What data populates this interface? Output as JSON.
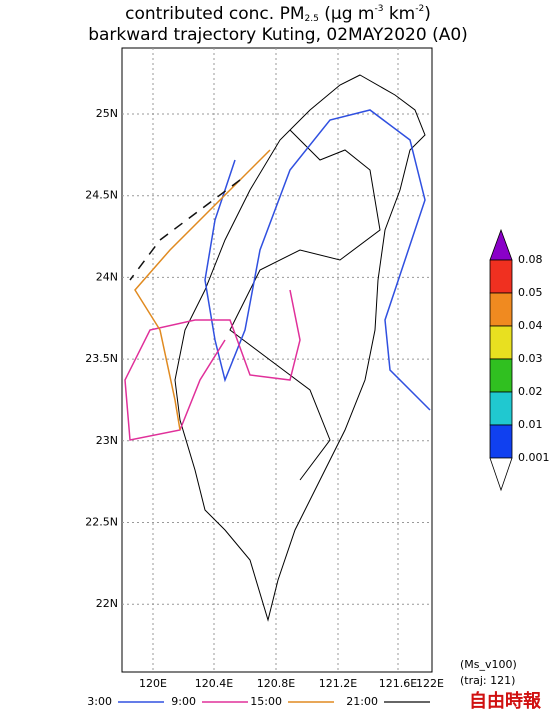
{
  "title": {
    "line1": [
      "contributed conc. PM",
      "2.5",
      " (μg m",
      "-3",
      " km",
      "-2",
      ")"
    ],
    "line2": "barkward trajectory Kuting, 02MAY2020 (A0)"
  },
  "map": {
    "xticks": [
      "120E",
      "120.4E",
      "120.8E",
      "121.2E",
      "121.6E",
      "122E"
    ],
    "yticks": [
      "25N",
      "24.5N",
      "24N",
      "23.5N",
      "23N",
      "22.5N",
      "22N"
    ]
  },
  "colorbar": {
    "labels": [
      "0.08",
      "0.05",
      "0.04",
      "0.03",
      "0.02",
      "0.01",
      "0.001"
    ]
  },
  "legend": [
    "3:00",
    "9:00",
    "15:00",
    "21:00"
  ],
  "notes": [
    "(Ms_v100)",
    "(traj: 121)"
  ],
  "watermark": "自由時報"
}
